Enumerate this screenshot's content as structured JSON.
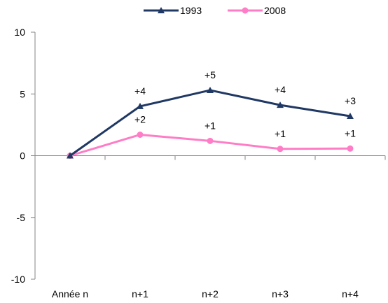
{
  "chart_data": {
    "type": "line",
    "categories": [
      "Année n",
      "n+1",
      "n+2",
      "n+3",
      "n+4"
    ],
    "ylim": [
      -10,
      10
    ],
    "yticks": [
      10,
      5,
      0,
      -5,
      -10
    ],
    "grid": false,
    "legend_position": "top-center",
    "series": [
      {
        "name": "1993",
        "values": [
          0,
          4.0,
          5.3,
          4.1,
          3.2
        ],
        "labels": [
          "",
          "+4",
          "+5",
          "+4",
          "+3"
        ],
        "color": "#1F3864",
        "marker": "triangle"
      },
      {
        "name": "2008",
        "values": [
          0,
          1.7,
          1.2,
          0.55,
          0.58
        ],
        "labels": [
          "",
          "+2",
          "+1",
          "+1",
          "+1"
        ],
        "color": "#FF7DC6",
        "marker": "circle"
      }
    ]
  }
}
